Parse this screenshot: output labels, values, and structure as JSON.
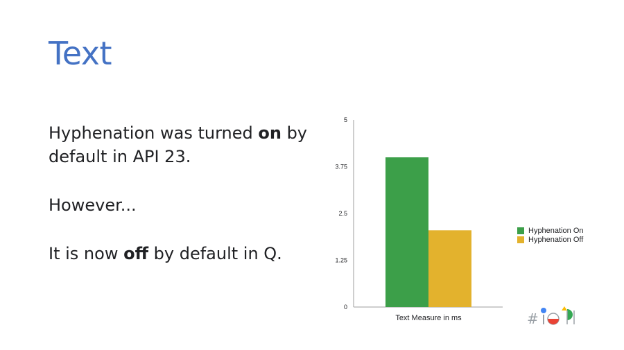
{
  "slide": {
    "title": "Text",
    "p1": {
      "before": "Hyphenation was turned ",
      "bold": "on",
      "after": " by default in API 23."
    },
    "p2": "However...",
    "p3": {
      "before": "It is now ",
      "bold": "off",
      "after": " by default in Q."
    }
  },
  "chart_data": {
    "type": "bar",
    "categories": [
      "Text Measure in ms"
    ],
    "series": [
      {
        "name": "Hyphenation On",
        "values": [
          4.0
        ],
        "color": "#3c9f49"
      },
      {
        "name": "Hyphenation Off",
        "values": [
          2.05
        ],
        "color": "#e3b22d"
      }
    ],
    "ylim": [
      0,
      5
    ],
    "yticks": [
      "0",
      "1.25",
      "2.5",
      "3.75",
      "5"
    ],
    "xlabel": "Text Measure in ms",
    "ylabel": "",
    "grid": false,
    "legend": "right"
  },
  "logo": {
    "name": "io-logo-icon"
  }
}
